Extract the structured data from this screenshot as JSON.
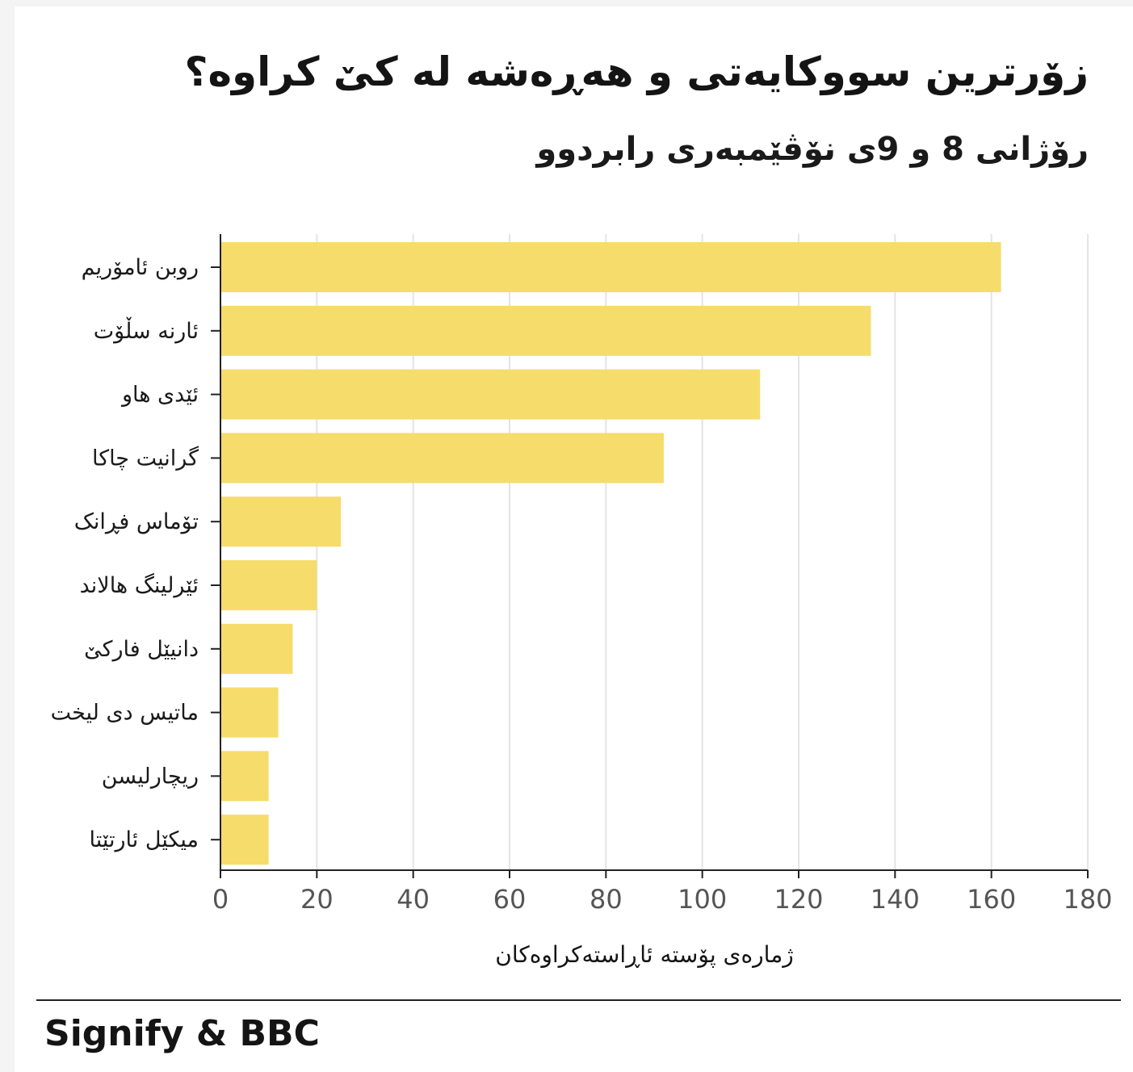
{
  "title": "زۆرترین سووکایەتی و هەڕەشە لە کێ کراوە؟",
  "subtitle": "رۆژانی 8 و 9ی نۆڤێمبەری رابردوو",
  "source": "Signify & BBC",
  "colors": {
    "bar": "#f6dc6b",
    "grid": "#e4e4e4",
    "axis": "#222222"
  },
  "chart_data": {
    "type": "bar",
    "orientation": "horizontal",
    "categories": [
      "روبن ئامۆریم",
      "ئارنە سڵۆت",
      "ئێدی هاو",
      "گرانیت چاکا",
      "تۆماس فڕانک",
      "ئێرلینگ هالاند",
      "دانیێل فارکێ",
      "ماتیس دی لیخت",
      "ریچارلیسن",
      "میکێل ئارتێتا"
    ],
    "values": [
      162,
      135,
      112,
      92,
      25,
      20,
      15,
      12,
      10,
      10
    ],
    "xlabel": "ژمارەی پۆستە ئاڕاستەکراوەکان",
    "ylabel": "",
    "xlim": [
      0,
      180
    ],
    "xticks": [
      "0",
      "20",
      "40",
      "60",
      "80",
      "100",
      "120",
      "140",
      "160",
      "180"
    ],
    "grid": true,
    "legend": "none"
  }
}
